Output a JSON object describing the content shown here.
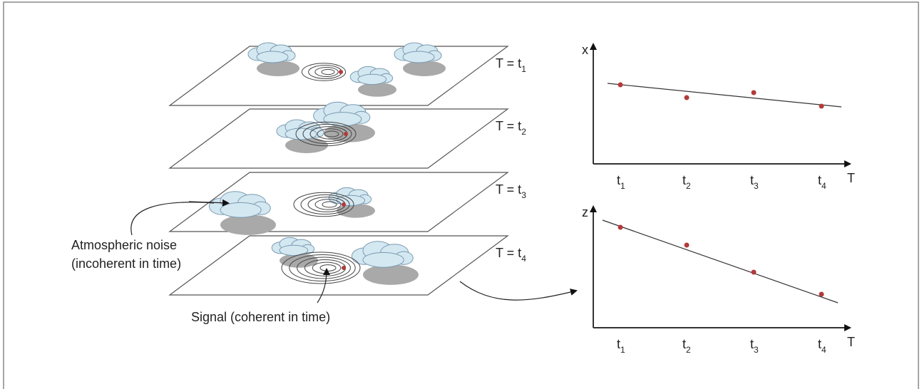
{
  "layers": [
    {
      "label": "T = t",
      "sub": "1"
    },
    {
      "label": "T = t",
      "sub": "2"
    },
    {
      "label": "T = t",
      "sub": "3"
    },
    {
      "label": "T = t",
      "sub": "4"
    }
  ],
  "annotations": {
    "noise": [
      "Atmospheric noise",
      "(incoherent in time)"
    ],
    "signal": "Signal (coherent in time)"
  },
  "plots": [
    {
      "y_label": "x",
      "x_label": "T",
      "ticks": [
        {
          "t": "t",
          "sub": "1"
        },
        {
          "t": "t",
          "sub": "2"
        },
        {
          "t": "t",
          "sub": "3"
        },
        {
          "t": "t",
          "sub": "4"
        }
      ]
    },
    {
      "y_label": "z",
      "x_label": "T",
      "ticks": [
        {
          "t": "t",
          "sub": "1"
        },
        {
          "t": "t",
          "sub": "2"
        },
        {
          "t": "t",
          "sub": "3"
        },
        {
          "t": "t",
          "sub": "4"
        }
      ]
    }
  ]
}
